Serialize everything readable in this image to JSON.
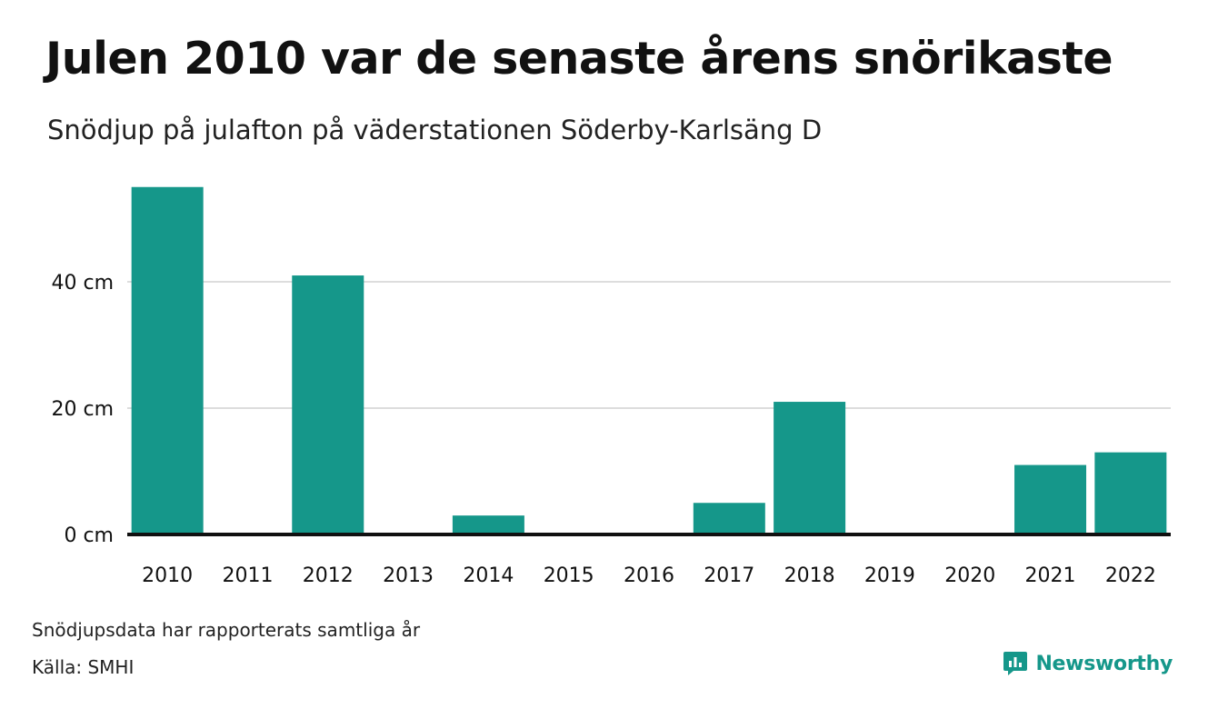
{
  "title": "Julen 2010 var de senaste årens snörikaste",
  "subtitle": "Snödjup på julafton på väderstationen Söderby-Karlsäng D",
  "note": "Snödjupsdata har rapporterats samtliga år",
  "source": "Källa: SMHI",
  "brand": {
    "name": "Newsworthy",
    "icon": "newsworthy-logo-icon",
    "color": "#15978a"
  },
  "colors": {
    "bar": "#15978a",
    "grid": "#dddddd",
    "baseline": "#111111"
  },
  "chart_data": {
    "type": "bar",
    "categories": [
      "2010",
      "2011",
      "2012",
      "2013",
      "2014",
      "2015",
      "2016",
      "2017",
      "2018",
      "2019",
      "2020",
      "2021",
      "2022"
    ],
    "values": [
      55,
      0,
      41,
      0,
      3,
      0,
      0,
      5,
      21,
      0,
      0,
      11,
      13
    ],
    "yticks": [
      0,
      20,
      40
    ],
    "ytick_labels": [
      "0 cm",
      "20 cm",
      "40 cm"
    ],
    "ylim": [
      0,
      55
    ],
    "unit": "cm",
    "grid": true,
    "xlabel": "",
    "ylabel": ""
  }
}
